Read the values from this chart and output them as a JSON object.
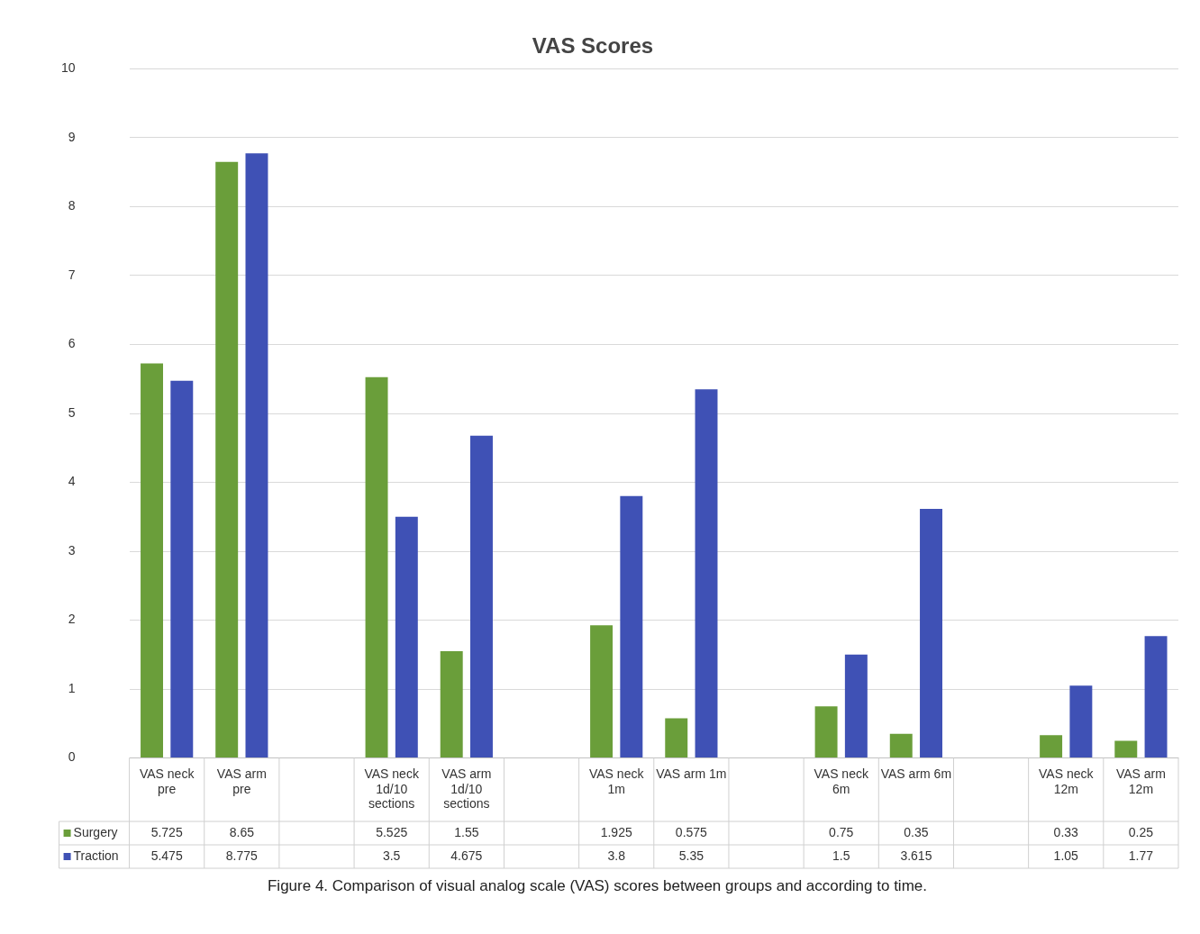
{
  "chart_data": {
    "type": "bar",
    "title": "VAS Scores",
    "categories": [
      "VAS neck pre",
      "VAS arm pre",
      null,
      "VAS neck 1d/10 sections",
      "VAS arm 1d/10 sections",
      null,
      "VAS neck 1m",
      "VAS arm 1m",
      null,
      "VAS neck 6m",
      "VAS arm 6m",
      null,
      "VAS neck 12m",
      "VAS arm 12m"
    ],
    "series": [
      {
        "name": "Surgery",
        "color": "#6a9e3a",
        "values": [
          5.725,
          8.65,
          null,
          5.525,
          1.55,
          null,
          1.925,
          0.575,
          null,
          0.75,
          0.35,
          null,
          0.33,
          0.25
        ]
      },
      {
        "name": "Traction",
        "color": "#3f51b5",
        "values": [
          5.475,
          8.775,
          null,
          3.5,
          4.675,
          null,
          3.8,
          5.35,
          null,
          1.5,
          3.615,
          null,
          1.05,
          1.77
        ]
      }
    ],
    "ylim": [
      0,
      10
    ],
    "yticks": [
      0,
      1,
      2,
      3,
      4,
      5,
      6,
      7,
      8,
      9,
      10
    ],
    "grid": "y",
    "legend": "bottom",
    "data_labels": true,
    "annotations": [
      "Figure 4. Comparison of visual analog scale (VAS) scores between groups and according to time."
    ]
  }
}
